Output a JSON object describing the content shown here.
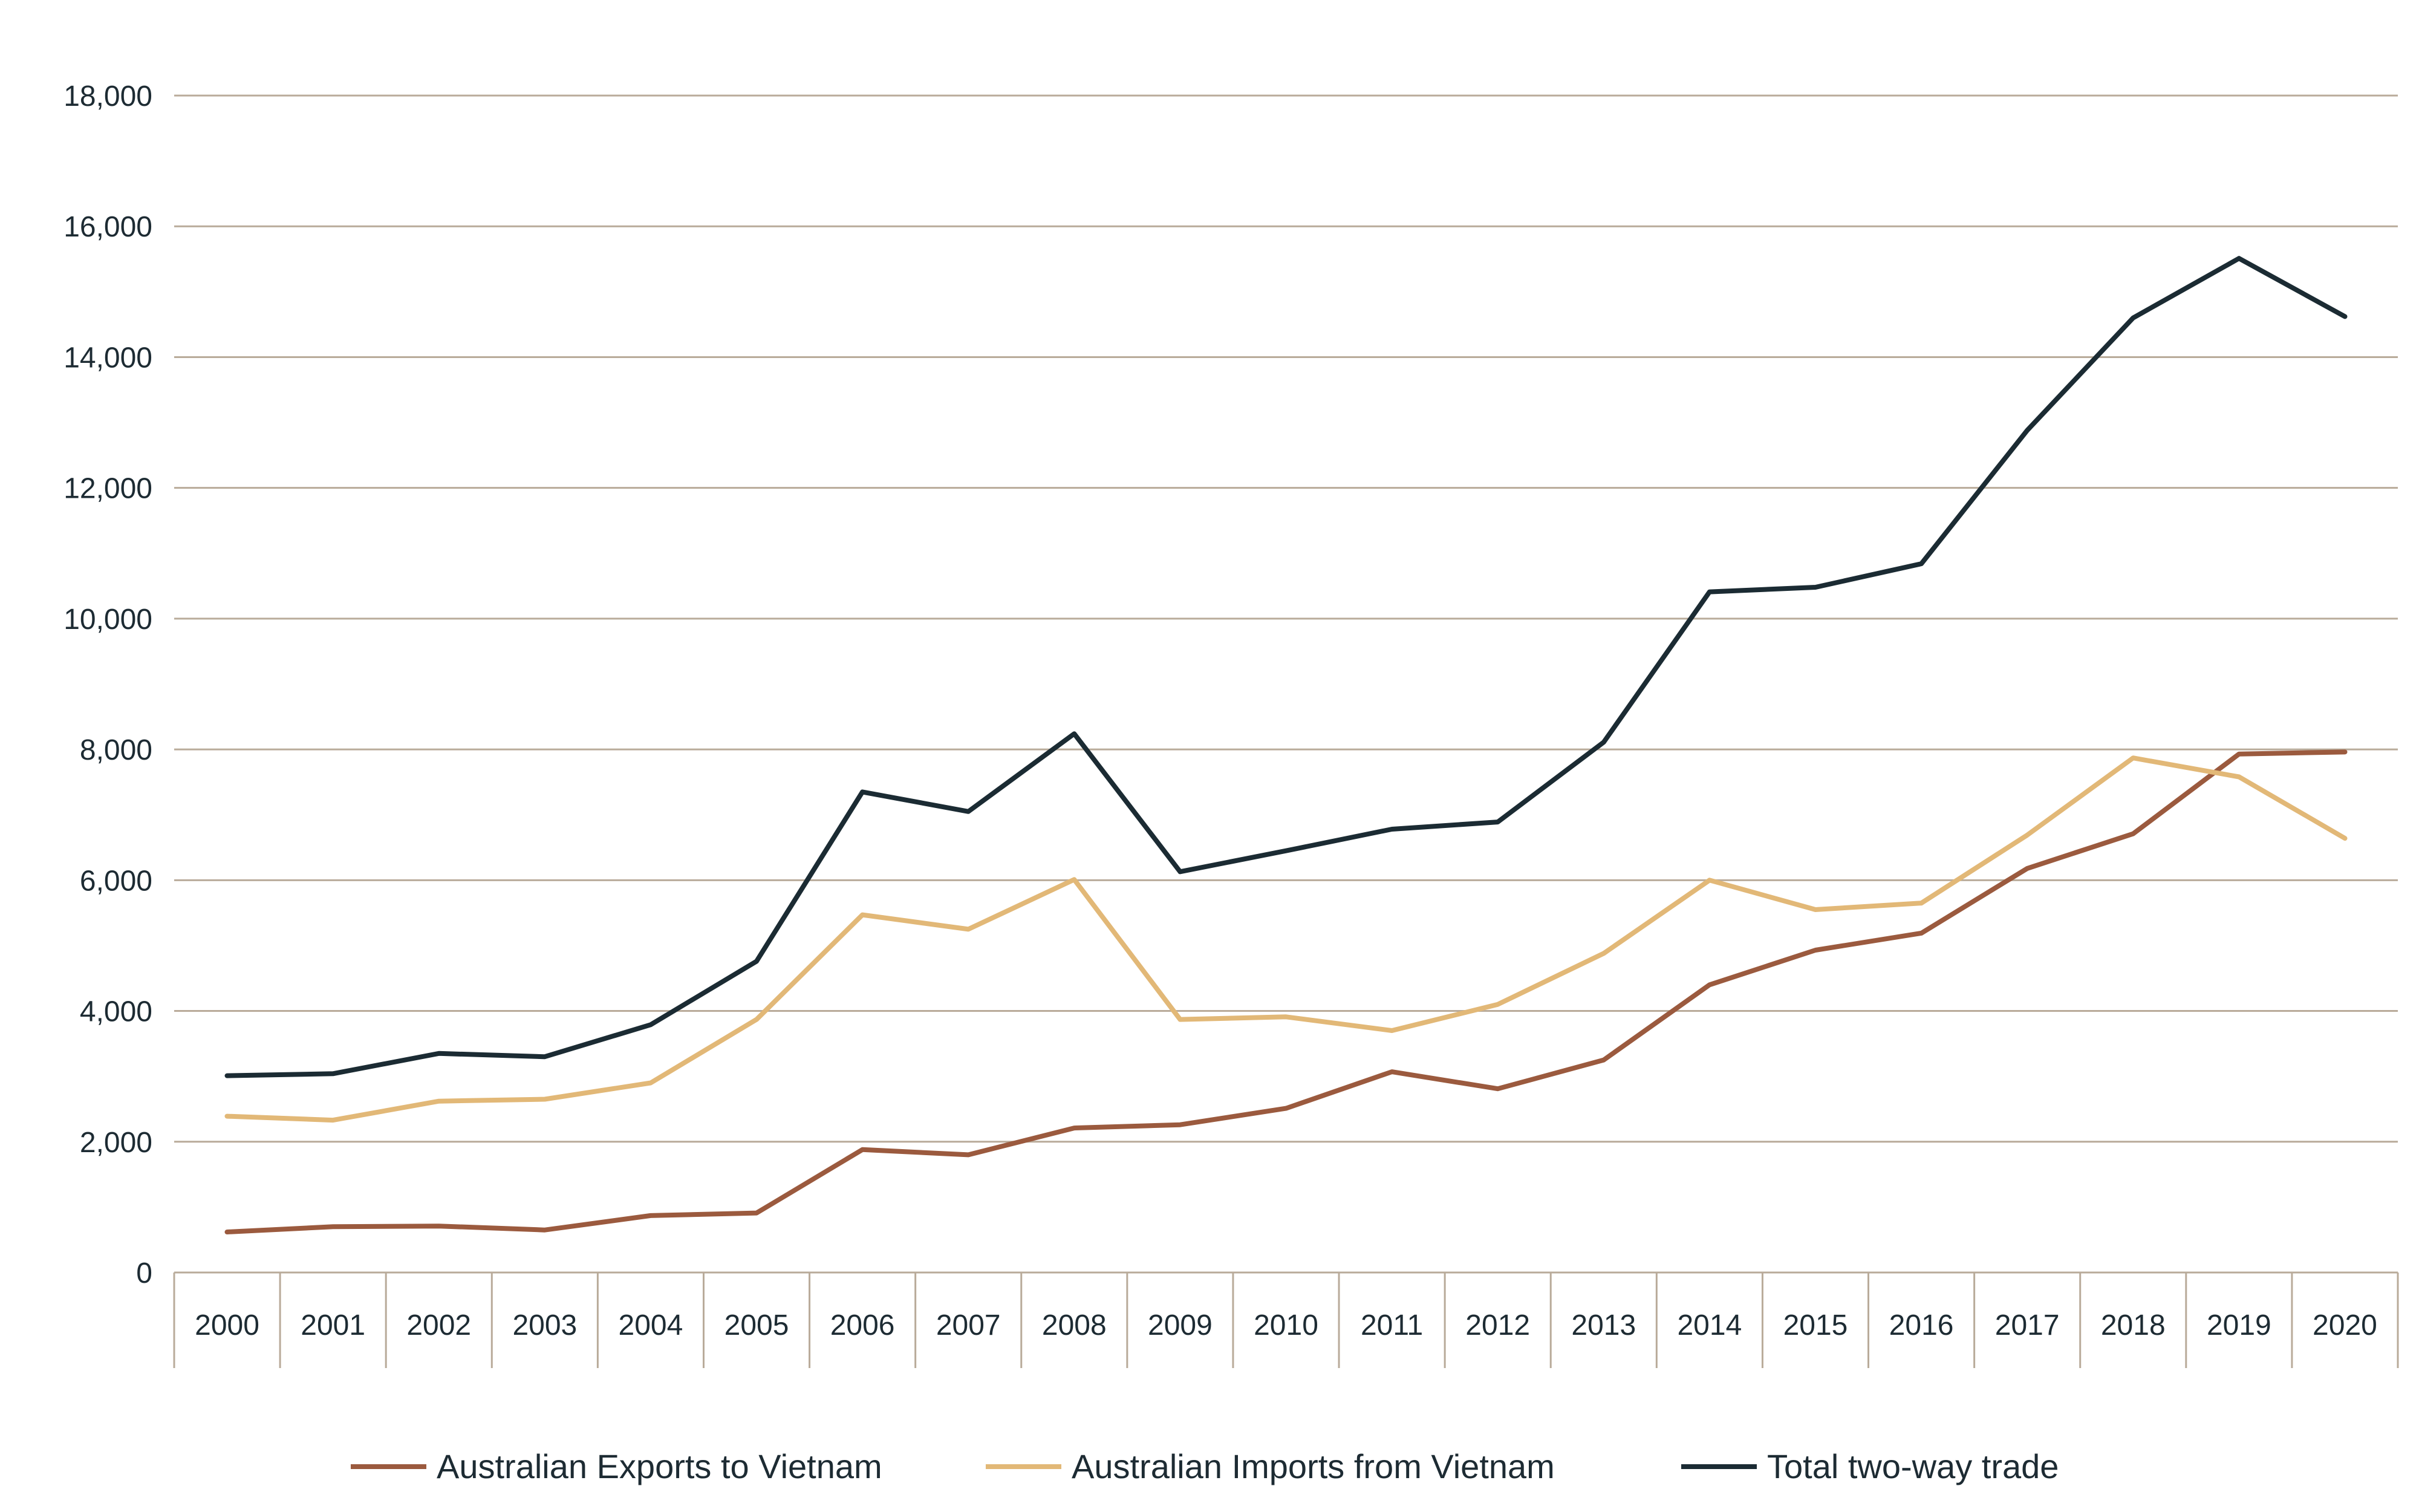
{
  "chart_data": {
    "type": "line",
    "title": "",
    "xlabel": "",
    "ylabel": "",
    "categories": [
      "2000",
      "2001",
      "2002",
      "2003",
      "2004",
      "2005",
      "2006",
      "2007",
      "2008",
      "2009",
      "2010",
      "2011",
      "2012",
      "2013",
      "2014",
      "2015",
      "2016",
      "2017",
      "2018",
      "2019",
      "2020"
    ],
    "ylim": [
      0,
      18000
    ],
    "yticks": [
      0,
      2000,
      4000,
      6000,
      8000,
      10000,
      12000,
      14000,
      16000,
      18000
    ],
    "ytick_labels": [
      "0",
      "2,000",
      "4,000",
      "6,000",
      "8,000",
      "10,000",
      "12,000",
      "14,000",
      "16,000",
      "18,000"
    ],
    "grid": true,
    "legend_position": "bottom",
    "series": [
      {
        "name": "Australian Exports to Vietnam",
        "color": "#9b5a3e",
        "values": [
          620,
          700,
          710,
          650,
          870,
          910,
          1880,
          1800,
          2210,
          2260,
          2510,
          3070,
          2810,
          3250,
          4400,
          4930,
          5190,
          6180,
          6710,
          7930,
          7960
        ]
      },
      {
        "name": "Australian Imports from Vietnam",
        "color": "#e2b877",
        "values": [
          2390,
          2330,
          2620,
          2650,
          2900,
          3870,
          5470,
          5250,
          6010,
          3870,
          3910,
          3700,
          4100,
          4880,
          6000,
          5550,
          5650,
          6690,
          7870,
          7580,
          6640
        ]
      },
      {
        "name": "Total two-way trade",
        "color": "#1b2b33",
        "values": [
          3010,
          3040,
          3350,
          3300,
          3790,
          4760,
          7350,
          7050,
          8240,
          6130,
          6450,
          6780,
          6890,
          8110,
          10410,
          10480,
          10840,
          12880,
          14600,
          15510,
          14620
        ]
      }
    ]
  }
}
